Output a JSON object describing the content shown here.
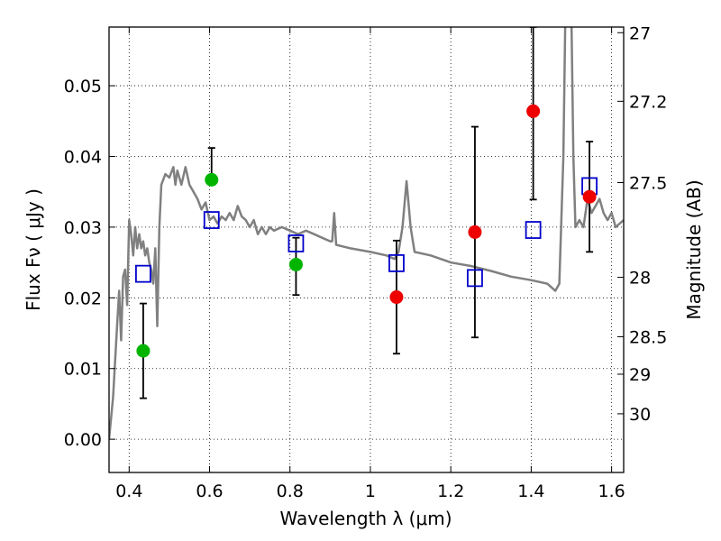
{
  "chart_data": {
    "type": "scatter",
    "xlabel": "Wavelength  λ (μm)",
    "ylabel": "Flux  Fν  ( μJy )",
    "y2label": "Magnitude (AB)",
    "xlim": [
      0.35,
      1.63
    ],
    "ylim": [
      -0.0047,
      0.0583
    ],
    "xticks": [
      0.4,
      0.6,
      0.8,
      1.0,
      1.2,
      1.4,
      1.6
    ],
    "xtick_labels": [
      "0.4",
      "0.6",
      "0.8",
      "1",
      "1.2",
      "1.4",
      "1.6"
    ],
    "yticks": [
      0.0,
      0.01,
      0.02,
      0.03,
      0.04,
      0.05
    ],
    "ytick_labels": [
      "0.00",
      "0.01",
      "0.02",
      "0.03",
      "0.04",
      "0.05"
    ],
    "y2ticks": [
      {
        "label": "27",
        "flux": 0.0575
      },
      {
        "label": "27.2",
        "flux": 0.0478
      },
      {
        "label": "27.5",
        "flux": 0.0363
      },
      {
        "label": "28",
        "flux": 0.0229
      },
      {
        "label": "28.5",
        "flux": 0.0145
      },
      {
        "label": "29",
        "flux": 0.0092
      },
      {
        "label": "30",
        "flux": 0.0036
      }
    ],
    "grid": true,
    "colors": {
      "spectrum": "#808080",
      "green": "#00b400",
      "red": "#ee0000",
      "model": "#0000cc",
      "errorbar": "#000000"
    },
    "series": [
      {
        "name": "model-spectrum",
        "kind": "line",
        "points": [
          [
            0.35,
            0.0
          ],
          [
            0.36,
            0.006
          ],
          [
            0.37,
            0.016
          ],
          [
            0.375,
            0.021
          ],
          [
            0.38,
            0.014
          ],
          [
            0.385,
            0.023
          ],
          [
            0.39,
            0.024
          ],
          [
            0.395,
            0.019
          ],
          [
            0.4,
            0.031
          ],
          [
            0.405,
            0.029
          ],
          [
            0.41,
            0.026
          ],
          [
            0.415,
            0.03
          ],
          [
            0.42,
            0.027
          ],
          [
            0.425,
            0.029
          ],
          [
            0.43,
            0.027
          ],
          [
            0.435,
            0.028
          ],
          [
            0.44,
            0.026
          ],
          [
            0.445,
            0.027
          ],
          [
            0.45,
            0.025
          ],
          [
            0.455,
            0.024
          ],
          [
            0.46,
            0.022
          ],
          [
            0.465,
            0.027
          ],
          [
            0.47,
            0.016
          ],
          [
            0.475,
            0.03
          ],
          [
            0.48,
            0.036
          ],
          [
            0.49,
            0.0375
          ],
          [
            0.5,
            0.037
          ],
          [
            0.51,
            0.0385
          ],
          [
            0.515,
            0.036
          ],
          [
            0.52,
            0.038
          ],
          [
            0.53,
            0.036
          ],
          [
            0.54,
            0.0385
          ],
          [
            0.55,
            0.036
          ],
          [
            0.56,
            0.035
          ],
          [
            0.57,
            0.034
          ],
          [
            0.58,
            0.0325
          ],
          [
            0.59,
            0.0335
          ],
          [
            0.6,
            0.031
          ],
          [
            0.61,
            0.0315
          ],
          [
            0.62,
            0.0305
          ],
          [
            0.63,
            0.0315
          ],
          [
            0.64,
            0.031
          ],
          [
            0.65,
            0.032
          ],
          [
            0.66,
            0.031
          ],
          [
            0.67,
            0.033
          ],
          [
            0.68,
            0.0315
          ],
          [
            0.69,
            0.031
          ],
          [
            0.7,
            0.03
          ],
          [
            0.71,
            0.031
          ],
          [
            0.72,
            0.029
          ],
          [
            0.73,
            0.03
          ],
          [
            0.74,
            0.029
          ],
          [
            0.75,
            0.03
          ],
          [
            0.76,
            0.0295
          ],
          [
            0.78,
            0.03
          ],
          [
            0.8,
            0.0295
          ],
          [
            0.82,
            0.029
          ],
          [
            0.84,
            0.0295
          ],
          [
            0.86,
            0.029
          ],
          [
            0.88,
            0.0285
          ],
          [
            0.9,
            0.028
          ],
          [
            0.905,
            0.028
          ],
          [
            0.91,
            0.032
          ],
          [
            0.915,
            0.0275
          ],
          [
            0.95,
            0.027
          ],
          [
            1.0,
            0.0265
          ],
          [
            1.04,
            0.026
          ],
          [
            1.06,
            0.0255
          ],
          [
            1.07,
            0.0265
          ],
          [
            1.08,
            0.03
          ],
          [
            1.09,
            0.0365
          ],
          [
            1.1,
            0.03
          ],
          [
            1.11,
            0.0265
          ],
          [
            1.15,
            0.026
          ],
          [
            1.2,
            0.025
          ],
          [
            1.25,
            0.0245
          ],
          [
            1.3,
            0.0238
          ],
          [
            1.35,
            0.023
          ],
          [
            1.4,
            0.0225
          ],
          [
            1.44,
            0.022
          ],
          [
            1.46,
            0.021
          ],
          [
            1.47,
            0.022
          ],
          [
            1.48,
            0.04
          ],
          [
            1.485,
            0.06
          ],
          [
            1.5,
            0.06
          ],
          [
            1.505,
            0.04
          ],
          [
            1.51,
            0.03
          ],
          [
            1.52,
            0.031
          ],
          [
            1.53,
            0.03
          ],
          [
            1.54,
            0.034
          ],
          [
            1.55,
            0.032
          ],
          [
            1.56,
            0.033
          ],
          [
            1.57,
            0.034
          ],
          [
            1.58,
            0.032
          ],
          [
            1.59,
            0.031
          ],
          [
            1.6,
            0.032
          ],
          [
            1.61,
            0.03
          ],
          [
            1.62,
            0.0305
          ],
          [
            1.63,
            0.031
          ]
        ]
      },
      {
        "name": "green-points",
        "kind": "scatter-errorbar",
        "points": [
          {
            "x": 0.435,
            "y": 0.0125,
            "ylo": 0.0058,
            "yhi": 0.0192
          },
          {
            "x": 0.605,
            "y": 0.0367,
            "ylo": null,
            "yhi": 0.0412
          },
          {
            "x": 0.815,
            "y": 0.0247,
            "ylo": 0.0204,
            "yhi": 0.0285
          }
        ]
      },
      {
        "name": "red-points",
        "kind": "scatter-errorbar",
        "points": [
          {
            "x": 1.065,
            "y": 0.0201,
            "ylo": 0.0121,
            "yhi": 0.0281
          },
          {
            "x": 1.26,
            "y": 0.0293,
            "ylo": 0.0144,
            "yhi": 0.0442
          },
          {
            "x": 1.405,
            "y": 0.0464,
            "ylo": 0.0339,
            "yhi": 0.0583
          },
          {
            "x": 1.545,
            "y": 0.0343,
            "ylo": 0.0265,
            "yhi": 0.0421
          }
        ]
      },
      {
        "name": "model-photometry",
        "kind": "scatter",
        "marker": "open-square",
        "points": [
          {
            "x": 0.435,
            "y": 0.0234
          },
          {
            "x": 0.605,
            "y": 0.031
          },
          {
            "x": 0.815,
            "y": 0.0277
          },
          {
            "x": 1.065,
            "y": 0.0249
          },
          {
            "x": 1.26,
            "y": 0.0228
          },
          {
            "x": 1.405,
            "y": 0.0296
          },
          {
            "x": 1.545,
            "y": 0.0358
          }
        ]
      }
    ]
  }
}
